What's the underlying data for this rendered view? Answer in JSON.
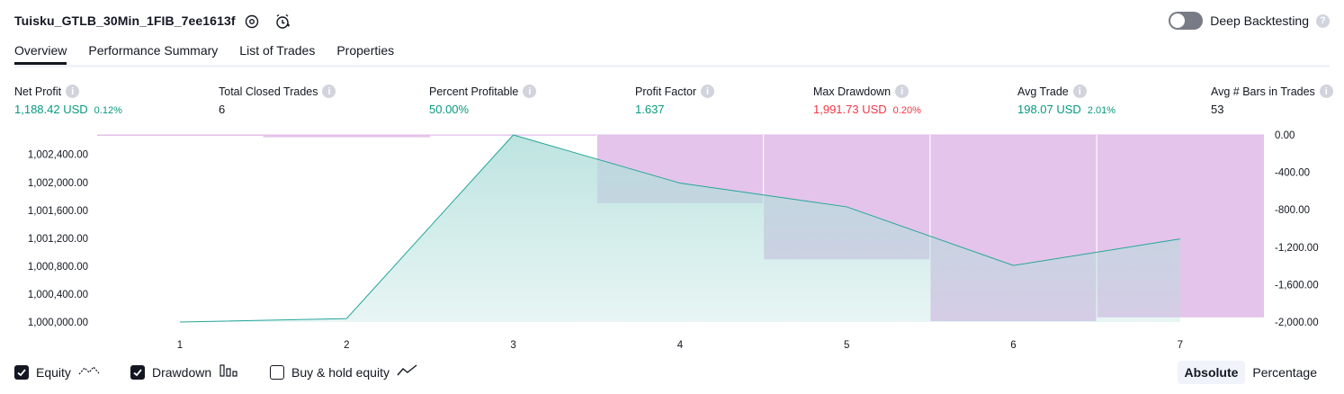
{
  "header": {
    "strategy_title": "Tuisku_GTLB_30Min_1FIB_7ee1613f",
    "icons": [
      "settings-icon",
      "alarm-icon"
    ],
    "deep_backtesting_label": "Deep Backtesting",
    "deep_backtesting_enabled": false,
    "help_glyph": "?"
  },
  "tabs": [
    {
      "label": "Overview",
      "active": true
    },
    {
      "label": "Performance Summary",
      "active": false
    },
    {
      "label": "List of Trades",
      "active": false
    },
    {
      "label": "Properties",
      "active": false
    }
  ],
  "metrics": [
    {
      "label": "Net Profit",
      "value": "1,188.42 USD",
      "sub": "0.12%",
      "tone": "green"
    },
    {
      "label": "Total Closed Trades",
      "value": "6",
      "sub": "",
      "tone": "dark"
    },
    {
      "label": "Percent Profitable",
      "value": "50.00%",
      "sub": "",
      "tone": "green"
    },
    {
      "label": "Profit Factor",
      "value": "1.637",
      "sub": "",
      "tone": "green"
    },
    {
      "label": "Max Drawdown",
      "value": "1,991.73 USD",
      "sub": "0.20%",
      "tone": "red"
    },
    {
      "label": "Avg Trade",
      "value": "198.07 USD",
      "sub": "2.01%",
      "tone": "green"
    },
    {
      "label": "Avg # Bars in Trades",
      "value": "53",
      "sub": "",
      "tone": "dark"
    }
  ],
  "chart_data": {
    "type": "area",
    "x": [
      1,
      2,
      3,
      4,
      5,
      6,
      7
    ],
    "x_tick_labels": [
      "1",
      "2",
      "3",
      "4",
      "5",
      "6",
      "7"
    ],
    "y_left_ticks": [
      "1,000,000.00",
      "1,000,400.00",
      "1,000,800.00",
      "1,001,200.00",
      "1,001,600.00",
      "1,002,000.00",
      "1,002,400.00"
    ],
    "y_left_tick_values": [
      1000000,
      1000400,
      1000800,
      1001200,
      1001600,
      1002000,
      1002400
    ],
    "y_left_range": [
      1000000,
      1002680
    ],
    "y_right_ticks": [
      "0.00",
      "-400.00",
      "-800.00",
      "-1,200.00",
      "-1,600.00",
      "-2,000.00"
    ],
    "y_right_tick_values": [
      0,
      -400,
      -800,
      -1200,
      -1600,
      -2000
    ],
    "y_right_range": [
      -2000,
      0
    ],
    "series": [
      {
        "name": "Equity",
        "axis": "left",
        "values": [
          1000000,
          1000050,
          1002680,
          1001990,
          1001650,
          1000810,
          1001190
        ],
        "color": "#26a69a"
      },
      {
        "name": "Drawdown",
        "axis": "right",
        "values": [
          -10,
          -25,
          0,
          -730,
          -1330,
          -1990,
          -1950
        ],
        "color": "#ce93d8"
      }
    ],
    "grid": false,
    "legend_position": "bottom-left"
  },
  "legend": [
    {
      "label": "Equity",
      "checked": true,
      "icon": "equity-line-icon"
    },
    {
      "label": "Drawdown",
      "checked": true,
      "icon": "drawdown-bars-icon"
    },
    {
      "label": "Buy & hold equity",
      "checked": false,
      "icon": "buy-hold-line-icon"
    }
  ],
  "scale_toggle": {
    "options": [
      "Absolute",
      "Percentage"
    ],
    "selected": "Absolute"
  },
  "colors": {
    "positive": "#089981",
    "negative": "#f23645",
    "equity_line": "#26a69a",
    "equity_fill": "#b2dfdb",
    "drawdown_fill": "#e1bee7",
    "text": "#131722"
  }
}
